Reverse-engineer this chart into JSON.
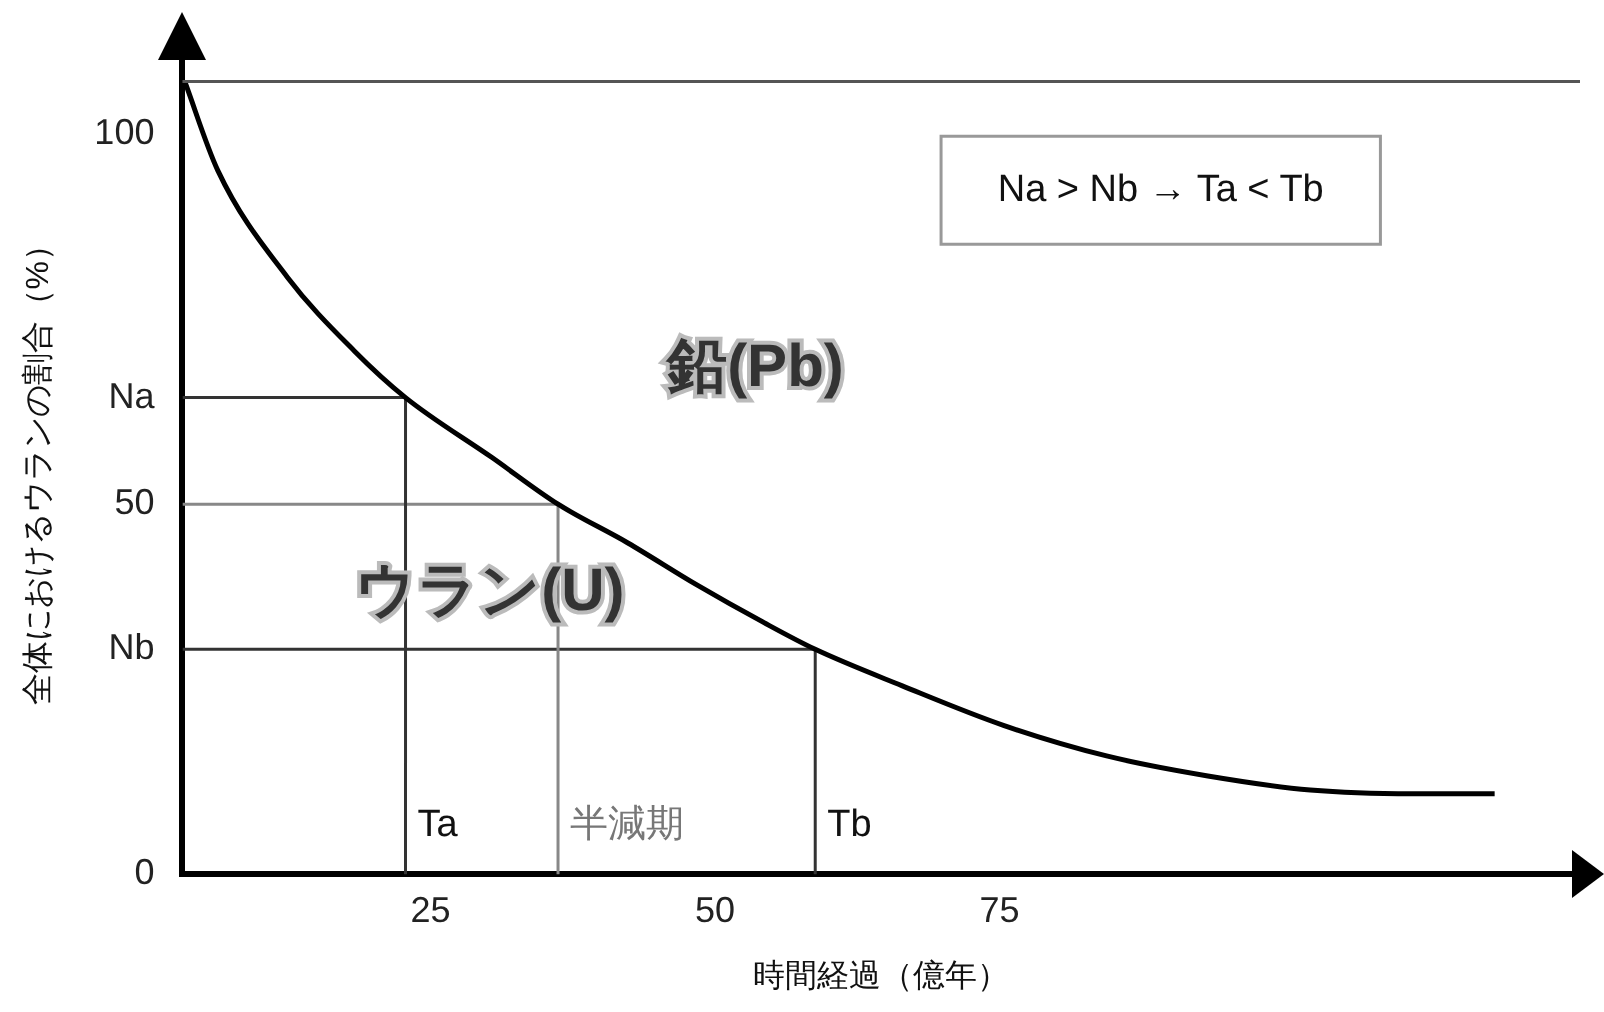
{
  "chart_data": {
    "type": "line",
    "xlabel": "時間経過（億年）",
    "ylabel": "全体におけるウランの割合（%）",
    "xlim": [
      3.2,
      126
    ],
    "xticks": [
      25,
      50,
      75
    ],
    "ylim": [
      0,
      110
    ],
    "yticks": [
      0,
      {
        "value": 30.4,
        "label": "Nb"
      },
      50,
      {
        "value": 64.4,
        "label": "Na"
      },
      {
        "value": 100,
        "label": "100"
      }
    ],
    "series": [
      {
        "color": "#000000",
        "x": [
          3.4,
          6.3,
          12.4,
          18.3,
          22.8,
          30.4,
          36.2,
          42.3,
          48.4,
          54.3,
          58.8,
          66.4,
          75.4,
          84.4,
          93.3,
          102.3,
          111.3,
          118.5
        ],
        "values": [
          107.1,
          95.1,
          80.7,
          70.7,
          64.4,
          56.3,
          50,
          44.8,
          39.1,
          34.0,
          30.4,
          25.5,
          20.1,
          16.0,
          13.3,
          11.4,
          10.9,
          10.9
        ]
      },
      {
        "color": "#333333",
        "x": [
          3.2,
          22.8,
          22.8
        ],
        "values": [
          64.4,
          64.4,
          0
        ]
      },
      {
        "color": "#888888",
        "x": [
          3.2,
          36.2,
          36.2
        ],
        "values": [
          50,
          50,
          0
        ]
      },
      {
        "color": "#333333",
        "x": [
          3.2,
          58.8,
          58.8
        ],
        "values": [
          30.4,
          30.4,
          0
        ]
      }
    ],
    "ref_lines": [
      {
        "axis": "y",
        "value": 107.1,
        "color": "#555555"
      }
    ],
    "annotations": [
      "鉛(Pb)",
      "ウラン(U)",
      "Ta",
      "半減期",
      "Tb",
      "Na > Nb → Ta < Tb"
    ],
    "marker": "none",
    "grid": false,
    "legend": false
  }
}
